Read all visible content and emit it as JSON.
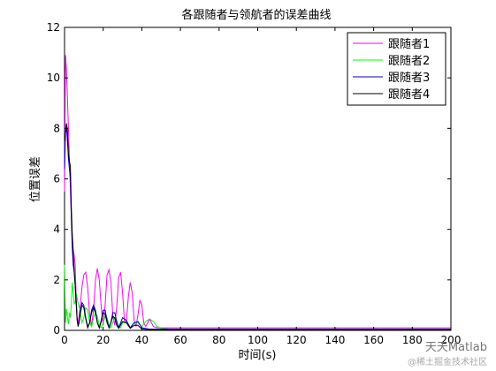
{
  "chart_data": {
    "type": "line",
    "title": "各跟随者与领航者的误差曲线",
    "xlabel": "时间(s)",
    "ylabel": "位置误差",
    "xlim": [
      0,
      200
    ],
    "ylim": [
      0,
      12
    ],
    "xticks": [
      0,
      20,
      40,
      60,
      80,
      100,
      120,
      140,
      160,
      180,
      200
    ],
    "yticks": [
      0,
      2,
      4,
      6,
      8,
      10,
      12
    ],
    "grid": false,
    "legend_position": "top-right",
    "series": [
      {
        "name": "跟随者1",
        "color": "#ff00ff",
        "x": [
          0,
          0.5,
          1,
          1.5,
          2,
          2.5,
          3,
          3.5,
          4,
          4.5,
          5,
          5.5,
          6,
          6.5,
          7,
          8,
          9,
          10,
          11,
          12,
          13,
          14,
          15,
          16,
          17,
          18,
          19,
          20,
          21,
          22,
          23,
          24,
          25,
          26,
          27,
          28,
          29,
          30,
          31,
          32,
          33,
          34,
          35,
          36,
          37,
          38,
          39,
          40,
          41,
          42,
          43,
          44,
          45,
          46,
          48,
          50,
          55,
          60,
          80,
          100,
          120,
          140,
          160,
          180,
          200
        ],
        "y": [
          5.5,
          10.9,
          10.3,
          9.2,
          8.0,
          6.8,
          5.6,
          4.6,
          3.8,
          3.2,
          3.0,
          2.6,
          1.4,
          0.5,
          0.25,
          0.9,
          1.7,
          2.2,
          2.3,
          1.7,
          0.6,
          0.2,
          0.8,
          2.0,
          2.45,
          2.0,
          0.9,
          0.2,
          1.0,
          2.2,
          2.4,
          1.9,
          0.6,
          0.2,
          0.9,
          2.1,
          2.3,
          1.5,
          0.4,
          0.3,
          1.3,
          1.9,
          1.5,
          0.4,
          0.15,
          0.6,
          1.2,
          1.0,
          0.3,
          0.15,
          0.3,
          0.45,
          0.3,
          0.15,
          0.1,
          0.1,
          0.1,
          0.1,
          0.1,
          0.1,
          0.1,
          0.1,
          0.1,
          0.1,
          0.1
        ]
      },
      {
        "name": "跟随者2",
        "color": "#00ff00",
        "x": [
          0,
          0.5,
          1,
          1.5,
          2,
          2.5,
          3,
          3.5,
          4,
          4.5,
          5,
          5.5,
          6,
          7,
          8,
          9,
          10,
          11,
          12,
          13,
          14,
          15,
          16,
          17,
          18,
          19,
          20,
          21,
          22,
          23,
          24,
          25,
          26,
          27,
          28,
          29,
          30,
          32,
          34,
          36,
          38,
          40,
          42,
          44,
          46,
          48,
          50,
          55,
          60,
          80,
          100,
          120,
          140,
          160,
          180,
          200
        ],
        "y": [
          2.6,
          0.3,
          0.85,
          0.5,
          0.25,
          0.7,
          0.5,
          1.0,
          1.9,
          1.5,
          1.05,
          1.1,
          1.5,
          1.1,
          0.8,
          0.3,
          0.5,
          0.9,
          0.8,
          0.3,
          0.15,
          0.5,
          0.7,
          0.55,
          0.2,
          0.1,
          0.3,
          0.55,
          0.5,
          0.2,
          0.1,
          0.3,
          0.5,
          0.4,
          0.15,
          0.1,
          0.3,
          0.3,
          0.1,
          0.3,
          0.3,
          0.15,
          0.35,
          0.45,
          0.35,
          0.15,
          0.08,
          0.05,
          0.05,
          0.05,
          0.05,
          0.05,
          0.05,
          0.05,
          0.05,
          0.05
        ]
      },
      {
        "name": "跟随者3",
        "color": "#0000cc",
        "x": [
          0,
          0.5,
          1,
          1.5,
          2,
          2.5,
          3,
          3.5,
          4,
          4.5,
          5,
          5.5,
          6,
          6.5,
          7,
          7.5,
          8,
          9,
          10,
          11,
          12,
          13,
          14,
          15,
          16,
          17,
          18,
          19,
          20,
          21,
          22,
          23,
          24,
          25,
          26,
          27,
          28,
          29,
          30,
          32,
          34,
          36,
          38,
          40,
          44,
          50,
          60,
          80,
          100,
          120,
          140,
          160,
          180,
          200
        ],
        "y": [
          6.4,
          7.8,
          8.1,
          7.5,
          6.8,
          6.4,
          6.0,
          4.5,
          3.3,
          2.6,
          2.3,
          1.8,
          1.2,
          0.5,
          0.2,
          0.3,
          0.7,
          1.1,
          1.0,
          0.5,
          0.15,
          0.3,
          0.8,
          1.0,
          0.8,
          0.3,
          0.1,
          0.4,
          0.8,
          0.8,
          0.4,
          0.1,
          0.3,
          0.7,
          0.7,
          0.35,
          0.1,
          0.3,
          0.5,
          0.4,
          0.1,
          0.3,
          0.35,
          0.1,
          0.05,
          0.05,
          0.05,
          0.05,
          0.05,
          0.05,
          0.05,
          0.05,
          0.05,
          0.05
        ]
      },
      {
        "name": "跟随者4",
        "color": "#000000",
        "x": [
          0,
          0.5,
          1,
          1.5,
          2,
          2.5,
          3,
          3.5,
          4,
          4.5,
          5,
          5.5,
          6,
          6.5,
          7,
          7.5,
          8,
          9,
          10,
          11,
          12,
          13,
          14,
          15,
          16,
          17,
          18,
          19,
          20,
          21,
          22,
          23,
          24,
          25,
          26,
          27,
          28,
          30,
          32,
          34,
          36,
          38,
          40,
          45,
          50,
          60,
          80,
          100,
          120,
          140,
          160,
          180,
          200
        ],
        "y": [
          7.5,
          7.9,
          8.2,
          7.9,
          7.0,
          6.7,
          6.5,
          5.0,
          3.8,
          3.0,
          2.4,
          1.8,
          1.1,
          0.4,
          0.15,
          0.3,
          0.6,
          1.0,
          0.9,
          0.45,
          0.1,
          0.3,
          0.7,
          0.9,
          0.7,
          0.3,
          0.1,
          0.35,
          0.7,
          0.65,
          0.3,
          0.1,
          0.3,
          0.55,
          0.5,
          0.2,
          0.08,
          0.35,
          0.3,
          0.08,
          0.2,
          0.2,
          0.05,
          0.03,
          0.03,
          0.03,
          0.03,
          0.03,
          0.03,
          0.03,
          0.03,
          0.03,
          0.03
        ]
      }
    ]
  },
  "watermark": {
    "main": "天天Matlab",
    "sub": "@稀土掘金技术社区"
  }
}
